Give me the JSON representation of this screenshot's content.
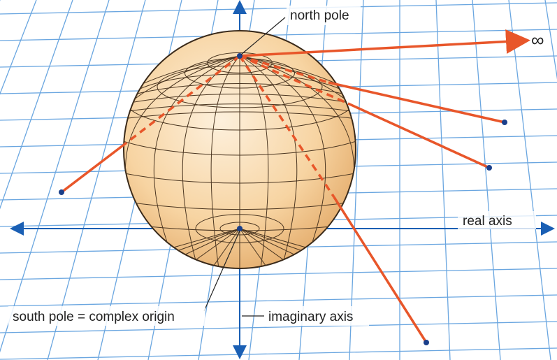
{
  "labels": {
    "north_pole": "north pole",
    "infinity": "∞",
    "real_axis": "real axis",
    "south_pole": "south pole = complex origin",
    "imaginary_axis": "imaginary axis"
  }
}
